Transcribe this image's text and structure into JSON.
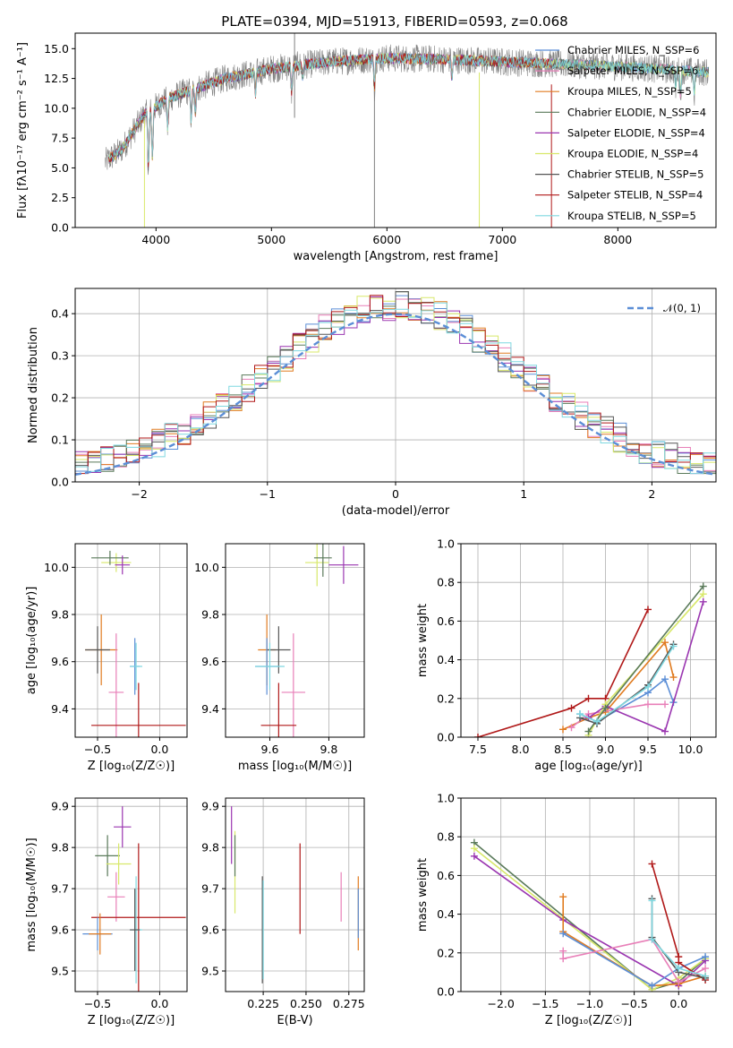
{
  "title": "PLATE=0394, MJD=51913, FIBERID=0593, z=0.068",
  "colors": {
    "chabrier_miles": "#5b8ed6",
    "salpeter_miles": "#e87fb8",
    "kroupa_miles": "#e07b20",
    "chabrier_elodie": "#5a7a5a",
    "salpeter_elodie": "#9a35b0",
    "kroupa_elodie": "#d8e86a",
    "chabrier_stelib": "#555555",
    "salpeter_stelib": "#b01818",
    "kroupa_stelib": "#7fd8e0",
    "data": "#808080",
    "gaussian": "#5b8ed6",
    "grid": "#b0b0b0"
  },
  "chart_data": [
    {
      "id": "spectrum",
      "type": "line",
      "xlabel": "wavelength [Angstrom, rest frame]",
      "ylabel": "Flux [fλ10⁻¹⁷ erg cm⁻² s⁻¹ A⁻¹]",
      "xlim": [
        3300,
        8850
      ],
      "ylim": [
        0,
        16.3
      ],
      "xticks": [
        "4000",
        "5000",
        "6000",
        "7000",
        "8000"
      ],
      "yticks": [
        "0.0",
        "2.5",
        "5.0",
        "7.5",
        "10.0",
        "12.5",
        "15.0"
      ],
      "grid": false,
      "legend_position": "right",
      "legend": [
        "Chabrier MILES, N_SSP=6",
        "Salpeter MILES, N_SSP=6",
        "Kroupa MILES, N_SSP=5",
        "Chabrier ELODIE, N_SSP=4",
        "Salpeter ELODIE, N_SSP=4",
        "Kroupa ELODIE, N_SSP=4",
        "Chabrier STELIB, N_SSP=5",
        "Salpeter STELIB, N_SSP=4",
        "Kroupa STELIB, N_SSP=5"
      ],
      "continuum_x": [
        3560,
        3700,
        3900,
        4100,
        4300,
        4600,
        5000,
        5500,
        6000,
        6500,
        7000,
        7500,
        8000,
        8500,
        8800
      ],
      "continuum_y": [
        5.5,
        6.5,
        9.5,
        10.8,
        11.5,
        12.5,
        13.3,
        13.9,
        14.2,
        14.1,
        13.9,
        13.7,
        13.5,
        13.2,
        13.0
      ]
    },
    {
      "id": "residuals",
      "type": "line",
      "xlabel": "(data-model)/error",
      "ylabel": "Normed distribution",
      "xlim": [
        -2.5,
        2.5
      ],
      "ylim": [
        0,
        0.46
      ],
      "xticks": [
        "−2",
        "−1",
        "0",
        "1",
        "2"
      ],
      "yticks": [
        "0.0",
        "0.1",
        "0.2",
        "0.3",
        "0.4"
      ],
      "grid": true,
      "legend_position": "top-right",
      "legend": [
        "𝒩(0, 1)"
      ]
    },
    {
      "id": "age_vs_Z",
      "type": "scatter",
      "xlabel": "Z [log₁₀(Z/Z☉)]",
      "ylabel": "age  [log₁₀(age/yr)]",
      "xlim": [
        -0.68,
        0.22
      ],
      "ylim": [
        9.28,
        10.1
      ],
      "xticks": [
        "−0.5",
        "0.0"
      ],
      "yticks": [
        "9.4",
        "9.6",
        "9.8",
        "10.0"
      ],
      "grid": true,
      "points": [
        {
          "c": "kroupa_elodie",
          "x": -0.35,
          "y": 10.02,
          "xe": 0.12,
          "ye": 0.04
        },
        {
          "c": "chabrier_elodie",
          "x": -0.4,
          "y": 10.04,
          "xe": 0.15,
          "ye": 0.03
        },
        {
          "c": "salpeter_elodie",
          "x": -0.3,
          "y": 10.01,
          "xe": 0.06,
          "ye": 0.04
        },
        {
          "c": "kroupa_miles",
          "x": -0.47,
          "y": 9.65,
          "xe": 0.13,
          "ye": 0.15
        },
        {
          "c": "chabrier_stelib",
          "x": -0.5,
          "y": 9.65,
          "xe": 0.1,
          "ye": 0.1
        },
        {
          "c": "salpeter_miles",
          "x": -0.35,
          "y": 9.47,
          "xe": 0.06,
          "ye": 0.25
        },
        {
          "c": "chabrier_miles",
          "x": -0.2,
          "y": 9.58,
          "xe": 0.04,
          "ye": 0.12
        },
        {
          "c": "kroupa_stelib",
          "x": -0.19,
          "y": 9.58,
          "xe": 0.05,
          "ye": 0.1
        },
        {
          "c": "salpeter_stelib",
          "x": -0.17,
          "y": 9.33,
          "xe": 0.38,
          "ye": 0.18
        }
      ]
    },
    {
      "id": "age_vs_mass",
      "type": "scatter",
      "xlabel": "mass [log₁₀(M/M☉)]",
      "ylabel": "",
      "xlim": [
        9.45,
        9.92
      ],
      "ylim": [
        9.28,
        10.1
      ],
      "xticks": [
        "9.6",
        "9.8"
      ],
      "yticks": [
        "9.4",
        "9.6",
        "9.8",
        "10.0"
      ],
      "grid": true,
      "points": [
        {
          "c": "kroupa_elodie",
          "x": 9.76,
          "y": 10.02,
          "xe": 0.04,
          "ye": 0.1
        },
        {
          "c": "chabrier_elodie",
          "x": 9.78,
          "y": 10.04,
          "xe": 0.03,
          "ye": 0.08
        },
        {
          "c": "salpeter_elodie",
          "x": 9.85,
          "y": 10.01,
          "xe": 0.05,
          "ye": 0.08
        },
        {
          "c": "kroupa_miles",
          "x": 9.59,
          "y": 9.65,
          "xe": 0.03,
          "ye": 0.15
        },
        {
          "c": "chabrier_stelib",
          "x": 9.63,
          "y": 9.65,
          "xe": 0.04,
          "ye": 0.1
        },
        {
          "c": "salpeter_miles",
          "x": 9.68,
          "y": 9.47,
          "xe": 0.04,
          "ye": 0.25
        },
        {
          "c": "chabrier_miles",
          "x": 9.59,
          "y": 9.58,
          "xe": 0.04,
          "ye": 0.12
        },
        {
          "c": "kroupa_stelib",
          "x": 9.6,
          "y": 9.58,
          "xe": 0.05,
          "ye": 0.1
        },
        {
          "c": "salpeter_stelib",
          "x": 9.63,
          "y": 9.33,
          "xe": 0.06,
          "ye": 0.18
        }
      ]
    },
    {
      "id": "weight_vs_age",
      "type": "line",
      "xlabel": "age  [log₁₀(age/yr)]",
      "ylabel": "mass weight",
      "xlim": [
        7.3,
        10.3
      ],
      "ylim": [
        0,
        1
      ],
      "xticks": [
        "7.5",
        "8.0",
        "8.5",
        "9.0",
        "9.5",
        "10.0"
      ],
      "yticks": [
        "0.0",
        "0.2",
        "0.4",
        "0.6",
        "0.8",
        "1.0"
      ],
      "grid": true,
      "series": [
        {
          "c": "salpeter_stelib",
          "x": [
            7.5,
            8.6,
            8.8,
            9.0,
            9.5
          ],
          "y": [
            0.0,
            0.15,
            0.2,
            0.2,
            0.66
          ]
        },
        {
          "c": "chabrier_miles",
          "x": [
            8.7,
            8.9,
            9.5,
            9.7,
            9.8
          ],
          "y": [
            0.12,
            0.08,
            0.23,
            0.3,
            0.18
          ]
        },
        {
          "c": "kroupa_miles",
          "x": [
            8.5,
            8.8,
            9.0,
            9.7,
            9.8
          ],
          "y": [
            0.04,
            0.1,
            0.13,
            0.49,
            0.31
          ]
        },
        {
          "c": "salpeter_miles",
          "x": [
            8.6,
            8.8,
            9.5,
            9.7
          ],
          "y": [
            0.05,
            0.12,
            0.17,
            0.17
          ]
        },
        {
          "c": "salpeter_elodie",
          "x": [
            8.8,
            9.0,
            9.7,
            10.15
          ],
          "y": [
            0.1,
            0.16,
            0.03,
            0.7
          ]
        },
        {
          "c": "kroupa_elodie",
          "x": [
            8.8,
            9.0,
            10.15
          ],
          "y": [
            0.01,
            0.17,
            0.74
          ]
        },
        {
          "c": "chabrier_elodie",
          "x": [
            8.8,
            9.0,
            10.15
          ],
          "y": [
            0.03,
            0.15,
            0.78
          ]
        },
        {
          "c": "chabrier_stelib",
          "x": [
            8.7,
            8.9,
            9.5,
            9.8
          ],
          "y": [
            0.1,
            0.07,
            0.27,
            0.48
          ]
        },
        {
          "c": "kroupa_stelib",
          "x": [
            8.7,
            8.9,
            9.5,
            9.8
          ],
          "y": [
            0.12,
            0.08,
            0.26,
            0.47
          ]
        }
      ]
    },
    {
      "id": "mass_vs_Z",
      "type": "scatter",
      "xlabel": "Z [log₁₀(Z/Z☉)]",
      "ylabel": "mass [log₁₀(M/M☉)]",
      "xlim": [
        -0.68,
        0.22
      ],
      "ylim": [
        9.45,
        9.92
      ],
      "xticks": [
        "−0.5",
        "0.0"
      ],
      "yticks": [
        "9.5",
        "9.6",
        "9.7",
        "9.8",
        "9.9"
      ],
      "grid": true,
      "points": [
        {
          "c": "salpeter_elodie",
          "x": -0.3,
          "y": 9.85,
          "xe": 0.07,
          "ye": 0.05
        },
        {
          "c": "chabrier_elodie",
          "x": -0.42,
          "y": 9.78,
          "xe": 0.1,
          "ye": 0.05
        },
        {
          "c": "kroupa_elodie",
          "x": -0.33,
          "y": 9.76,
          "xe": 0.1,
          "ye": 0.05
        },
        {
          "c": "salpeter_miles",
          "x": -0.35,
          "y": 9.68,
          "xe": 0.07,
          "ye": 0.06
        },
        {
          "c": "salpeter_stelib",
          "x": -0.17,
          "y": 9.63,
          "xe": 0.38,
          "ye": 0.18
        },
        {
          "c": "chabrier_miles",
          "x": -0.5,
          "y": 9.59,
          "xe": 0.12,
          "ye": 0.04
        },
        {
          "c": "kroupa_miles",
          "x": -0.48,
          "y": 9.59,
          "xe": 0.09,
          "ye": 0.05
        },
        {
          "c": "kroupa_stelib",
          "x": -0.19,
          "y": 9.6,
          "xe": 0.05,
          "ye": 0.13
        },
        {
          "c": "chabrier_stelib",
          "x": -0.2,
          "y": 9.6,
          "xe": 0.04,
          "ye": 0.1
        }
      ]
    },
    {
      "id": "mass_vs_EBV",
      "type": "scatter",
      "xlabel": "E(B-V)",
      "ylabel": "",
      "xlim": [
        0.203,
        0.284
      ],
      "ylim": [
        9.45,
        9.92
      ],
      "xticks": [
        "0.225",
        "0.250",
        "0.275"
      ],
      "yticks": [
        "9.5",
        "9.6",
        "9.7",
        "9.8",
        "9.9"
      ],
      "grid": true,
      "points": [
        {
          "c": "salpeter_elodie",
          "x": 0.2065,
          "y": 9.83,
          "xe": 0,
          "ye": 0.07
        },
        {
          "c": "kroupa_elodie",
          "x": 0.2085,
          "y": 9.74,
          "xe": 0,
          "ye": 0.1
        },
        {
          "c": "chabrier_elodie",
          "x": 0.2085,
          "y": 9.78,
          "xe": 0,
          "ye": 0.05
        },
        {
          "c": "chabrier_stelib",
          "x": 0.2245,
          "y": 9.6,
          "xe": 0,
          "ye": 0.13
        },
        {
          "c": "kroupa_stelib",
          "x": 0.225,
          "y": 9.6,
          "xe": 0,
          "ye": 0.12
        },
        {
          "c": "salpeter_stelib",
          "x": 0.2465,
          "y": 9.7,
          "xe": 0,
          "ye": 0.11
        },
        {
          "c": "salpeter_miles",
          "x": 0.2705,
          "y": 9.68,
          "xe": 0,
          "ye": 0.06
        },
        {
          "c": "kroupa_miles",
          "x": 0.2805,
          "y": 9.64,
          "xe": 0,
          "ye": 0.09
        },
        {
          "c": "chabrier_miles",
          "x": 0.2805,
          "y": 9.64,
          "xe": 0,
          "ye": 0.06
        }
      ]
    },
    {
      "id": "weight_vs_Z",
      "type": "line",
      "xlabel": "Z [log₁₀(Z/Z☉)]",
      "ylabel": "mass weight",
      "xlim": [
        -2.45,
        0.42
      ],
      "ylim": [
        0,
        1
      ],
      "xticks": [
        "−2.0",
        "−1.5",
        "−1.0",
        "−0.5",
        "0.0"
      ],
      "yticks": [
        "0.0",
        "0.2",
        "0.4",
        "0.6",
        "0.8",
        "1.0"
      ],
      "grid": true,
      "series": [
        {
          "c": "chabrier_elodie",
          "x": [
            -2.3,
            -0.3,
            0.0,
            0.3
          ],
          "y": [
            0.77,
            0.01,
            0.05,
            0.17
          ]
        },
        {
          "c": "kroupa_elodie",
          "x": [
            -2.3,
            -0.3,
            0.0,
            0.3
          ],
          "y": [
            0.74,
            0.01,
            0.07,
            0.17
          ]
        },
        {
          "c": "salpeter_elodie",
          "x": [
            -2.3,
            -1.3,
            0.0,
            0.3
          ],
          "y": [
            0.7,
            0.37,
            0.03,
            0.16
          ]
        },
        {
          "c": "kroupa_miles",
          "x": [
            -1.3,
            -1.3,
            -0.3,
            0.0,
            0.3
          ],
          "y": [
            0.49,
            0.31,
            0.03,
            0.04,
            0.08
          ]
        },
        {
          "c": "chabrier_miles",
          "x": [
            -1.3,
            -0.3,
            0.0,
            0.3
          ],
          "y": [
            0.3,
            0.03,
            0.12,
            0.18
          ]
        },
        {
          "c": "salpeter_miles",
          "x": [
            -1.3,
            -1.3,
            -0.3,
            0.0,
            0.3
          ],
          "y": [
            0.21,
            0.17,
            0.27,
            0.05,
            0.12
          ]
        },
        {
          "c": "salpeter_stelib",
          "x": [
            -0.3,
            0.0,
            0.0,
            0.3
          ],
          "y": [
            0.66,
            0.18,
            0.15,
            0.06
          ]
        },
        {
          "c": "chabrier_stelib",
          "x": [
            -0.3,
            -0.3,
            0.0,
            0.3
          ],
          "y": [
            0.48,
            0.28,
            0.1,
            0.07
          ]
        },
        {
          "c": "kroupa_stelib",
          "x": [
            -0.3,
            -0.3,
            0.0,
            0.3
          ],
          "y": [
            0.47,
            0.27,
            0.12,
            0.08
          ]
        }
      ]
    }
  ]
}
